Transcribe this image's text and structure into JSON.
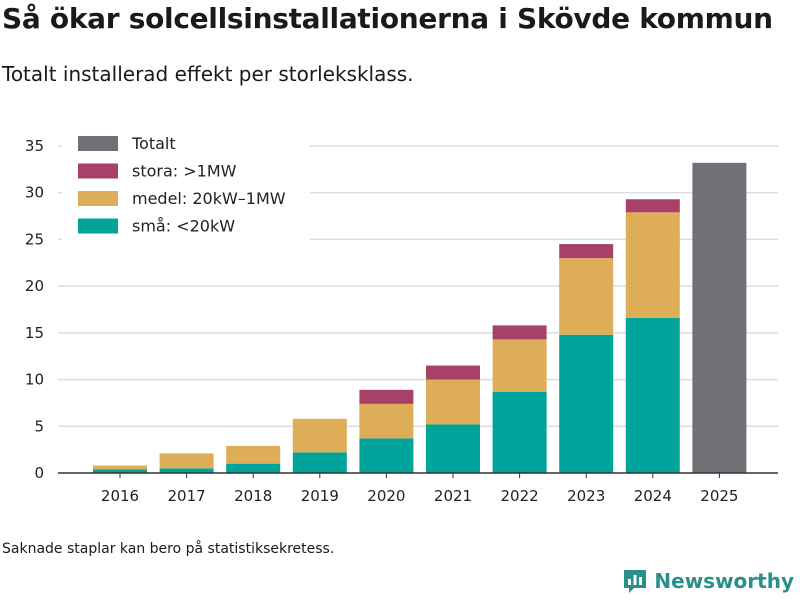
{
  "title": "Så ökar solcellsinstallationerna i Skövde kommun",
  "subtitle": "Totalt installerad effekt per storleksklass.",
  "footnote": "Saknade staplar kan bero på statistiksekretess.",
  "brand": {
    "name": "Newsworthy"
  },
  "colors": {
    "sma": "#00a49b",
    "medel": "#ddad58",
    "stora": "#a8416a",
    "totalt": "#717076",
    "grid": "#dddddd",
    "axis": "#333333"
  },
  "chart_data": {
    "type": "bar",
    "stacked": true,
    "categories": [
      "2016",
      "2017",
      "2018",
      "2019",
      "2020",
      "2021",
      "2022",
      "2023",
      "2024",
      "2025"
    ],
    "series": [
      {
        "key": "sma",
        "name": "små: <20kW",
        "values": [
          0.4,
          0.5,
          1.0,
          2.2,
          3.7,
          5.2,
          8.7,
          14.8,
          16.6,
          null
        ]
      },
      {
        "key": "medel",
        "name": "medel: 20kW–1MW",
        "values": [
          0.4,
          1.6,
          1.9,
          3.6,
          3.7,
          4.8,
          5.6,
          8.2,
          11.3,
          null
        ]
      },
      {
        "key": "stora",
        "name": "stora: >1MW",
        "values": [
          0,
          0,
          0,
          0,
          1.5,
          1.5,
          1.5,
          1.5,
          1.4,
          null
        ]
      },
      {
        "key": "totalt",
        "name": "Totalt",
        "values": [
          null,
          null,
          null,
          null,
          null,
          null,
          null,
          null,
          null,
          33.2
        ]
      }
    ],
    "legend_order": [
      "totalt",
      "stora",
      "medel",
      "sma"
    ],
    "legend_position": "top-left",
    "yticks": [
      0,
      5,
      10,
      15,
      20,
      25,
      30,
      35
    ],
    "ylim": [
      0,
      35
    ],
    "xlabel": "",
    "ylabel": "",
    "grid": true
  }
}
